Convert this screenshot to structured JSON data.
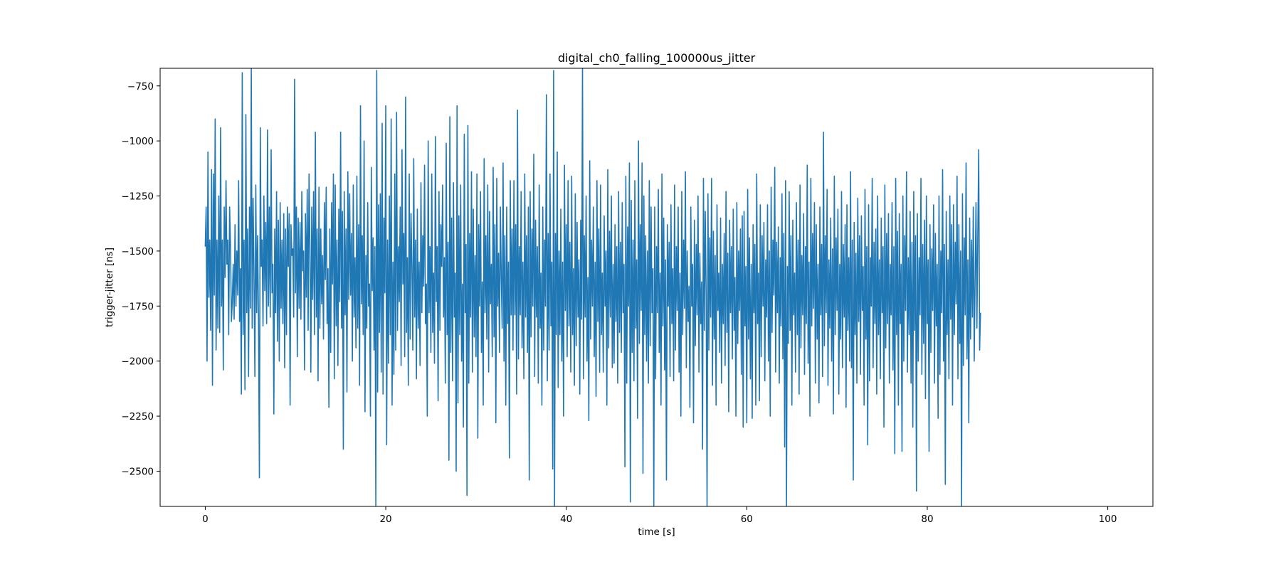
{
  "chart_data": {
    "type": "line",
    "title": "digital_ch0_falling_100000us_jitter",
    "xlabel": "time [s]",
    "ylabel": "trigger-jitter [ns]",
    "xlim": [
      -5,
      105
    ],
    "ylim": [
      -2660,
      -670
    ],
    "x_ticks": [
      0,
      20,
      40,
      60,
      80,
      100
    ],
    "x_tick_labels": [
      "0",
      "20",
      "40",
      "60",
      "80",
      "100"
    ],
    "y_ticks": [
      -2500,
      -2250,
      -2000,
      -1750,
      -1500,
      -1250,
      -1000,
      -750
    ],
    "y_tick_labels": [
      "−2500",
      "−2250",
      "−2000",
      "−1750",
      "−1500",
      "−1250",
      "−1000",
      "−750"
    ],
    "grid": false,
    "legend": "none",
    "series": [
      {
        "color": "#1f77b4",
        "x_start": 0,
        "x_step": 0.1,
        "values": [
          -1480,
          -1300,
          -2000,
          -1050,
          -1710,
          -1450,
          -1860,
          -1130,
          -2110,
          -1150,
          -1700,
          -900,
          -1950,
          -1450,
          -1850,
          -1250,
          -1870,
          -940,
          -1750,
          -1450,
          -2040,
          -1300,
          -1620,
          -1180,
          -1560,
          -1450,
          -1880,
          -1300,
          -1480,
          -1820,
          -1730,
          -1560,
          -1810,
          -1380,
          -1750,
          -1500,
          -1700,
          -1180,
          -1820,
          -1580,
          -2150,
          -690,
          -1880,
          -1450,
          -2130,
          -880,
          -1780,
          -1400,
          -2070,
          -1300,
          -1760,
          -670,
          -1850,
          -1260,
          -1600,
          -2070,
          -1200,
          -1780,
          -1430,
          -1800,
          -2530,
          -940,
          -1570,
          -1450,
          -1840,
          -1250,
          -1680,
          -1370,
          -1830,
          -950,
          -1750,
          -1300,
          -1800,
          -1040,
          -1690,
          -1560,
          -2240,
          -1400,
          -1780,
          -1230,
          -1910,
          -1360,
          -2000,
          -1280,
          -1760,
          -1450,
          -1830,
          -1330,
          -2030,
          -1400,
          -1880,
          -1300,
          -1570,
          -1330,
          -2200,
          -1380,
          -1520,
          -1490,
          -1800,
          -720,
          -1690,
          -1300,
          -1980,
          -1350,
          -1760,
          -1370,
          -1810,
          -1230,
          -1590,
          -1500,
          -2040,
          -1330,
          -1710,
          -1220,
          -1860,
          -1150,
          -1480,
          -2050,
          -1300,
          -1720,
          -1230,
          -1880,
          -960,
          -1800,
          -1400,
          -2090,
          -1210,
          -1850,
          -1400,
          -1740,
          -1520,
          -1900,
          -1280,
          -1630,
          -1210,
          -1830,
          -1580,
          -2210,
          -1400,
          -1960,
          -1280,
          -1650,
          -1150,
          -2080,
          -1200,
          -1840,
          -1450,
          -2020,
          -1310,
          -1730,
          -960,
          -1850,
          -1320,
          -2400,
          -1230,
          -1790,
          -1400,
          -2140,
          -1140,
          -1720,
          -1240,
          -1700,
          -1420,
          -2000,
          -1200,
          -1800,
          -1530,
          -1940,
          -1160,
          -1850,
          -1380,
          -2110,
          -840,
          -1740,
          -1430,
          -1880,
          -1000,
          -2230,
          -1520,
          -1850,
          -1280,
          -1750,
          -1650,
          -2250,
          -1120,
          -1680,
          -1440,
          -1950,
          -1480,
          -2660,
          -680,
          -2140,
          -1290,
          -1870,
          -1240,
          -2050,
          -920,
          -2150,
          -1350,
          -1690,
          -840,
          -2380,
          -1450,
          -2010,
          -1250,
          -1880,
          -900,
          -2200,
          -1550,
          -2060,
          -1150,
          -1950,
          -870,
          -1860,
          -1480,
          -1730,
          -1300,
          -2020,
          -1040,
          -1650,
          -1420,
          -1980,
          -800,
          -1870,
          -1530,
          -2110,
          -1150,
          -1900,
          -1330,
          -1570,
          -1950,
          -1080,
          -1800,
          -1450,
          -2080,
          -1310,
          -1850,
          -1550,
          -2020,
          -1190,
          -1780,
          -1430,
          -1660,
          -1110,
          -1830,
          -1650,
          -2250,
          -1000,
          -1780,
          -1480,
          -1960,
          -1150,
          -1870,
          -1600,
          -2010,
          -980,
          -1730,
          -1480,
          -2180,
          -1230,
          -1860,
          -1380,
          -1570,
          -1200,
          -1800,
          -1530,
          -2100,
          -1010,
          -1880,
          -1460,
          -2450,
          -890,
          -1960,
          -1350,
          -2090,
          -1190,
          -1800,
          -1600,
          -2500,
          -840,
          -2190,
          -1340,
          -1880,
          -1200,
          -2000,
          -1650,
          -2300,
          -970,
          -1780,
          -1470,
          -2610,
          -930,
          -2100,
          -1420,
          -1800,
          -1140,
          -2050,
          -1310,
          -1890,
          -1520,
          -1980,
          -1150,
          -2350,
          -1380,
          -1750,
          -1230,
          -1960,
          -1640,
          -2200,
          -1080,
          -1780,
          -1430,
          -1900,
          -1200,
          -2050,
          -1320,
          -1740,
          -1560,
          -1980,
          -1120,
          -1890,
          -1380,
          -2280,
          -1170,
          -1750,
          -1510,
          -1960,
          -1300,
          -1620,
          -1850,
          -1100,
          -2000,
          -1430,
          -2200,
          -1300,
          -1830,
          -1550,
          -2440,
          -1180,
          -1790,
          -1400,
          -1950,
          -1180,
          -1790,
          -1380,
          -2150,
          -860,
          -1990,
          -1480,
          -1790,
          -1230,
          -1940,
          -1550,
          -2080,
          -1150,
          -1800,
          -1430,
          -1960,
          -1300,
          -2540,
          -1230,
          -1890,
          -1400,
          -1750,
          -1060,
          -2070,
          -1360,
          -1800,
          -1480,
          -2100,
          -1200,
          -1850,
          -1600,
          -2200,
          -1300,
          -1950,
          -1450,
          -1750,
          -790,
          -2090,
          -1420,
          -1950,
          -1150,
          -1840,
          -1550,
          -2490,
          -680,
          -2670,
          -1420,
          -1880,
          -1050,
          -2120,
          -1500,
          -1880,
          -1310,
          -2000,
          -1550,
          -2250,
          -1110,
          -1770,
          -1380,
          -1980,
          -1180,
          -1840,
          -1460,
          -2050,
          -1160,
          -1880,
          -1580,
          -2110,
          -1240,
          -1930,
          -1370,
          -1800,
          -1540,
          -2150,
          -1360,
          -1810,
          -670,
          -2080,
          -1430,
          -1800,
          -1250,
          -2000,
          -1620,
          -2270,
          -1090,
          -1900,
          -1450,
          -1750,
          -1300,
          -1980,
          -1550,
          -2160,
          -1180,
          -1820,
          -1400,
          -2050,
          -1200,
          -1880,
          -1600,
          -2050,
          -1340,
          -1750,
          -1500,
          -2200,
          -1130,
          -1940,
          -1410,
          -1800,
          -1250,
          -2030,
          -1560,
          -2010,
          -1380,
          -1820,
          -1480,
          -2100,
          -1230,
          -1870,
          -1460,
          -1960,
          -1280,
          -1780,
          -1560,
          -2480,
          -1160,
          -2100,
          -1390,
          -1750,
          -1100,
          -2640,
          -1270,
          -1960,
          -1450,
          -2090,
          -1180,
          -1850,
          -1540,
          -2260,
          -1000,
          -1920,
          -1380,
          -1770,
          -1100,
          -2510,
          -1250,
          -1880,
          -1430,
          -2000,
          -1500,
          -2100,
          -1180,
          -1930,
          -1300,
          -1780,
          -1580,
          -2660,
          -1300,
          -2080,
          -1480,
          -1780,
          -1220,
          -1960,
          -1600,
          -2200,
          -1150,
          -1840,
          -1350,
          -2040,
          -1540,
          -2540,
          -1380,
          -1750,
          -1460,
          -2070,
          -1290,
          -1830,
          -1580,
          -2090,
          -1200,
          -1950,
          -1480,
          -1770,
          -1300,
          -2050,
          -1600,
          -2250,
          -1230,
          -1880,
          -1450,
          -1760,
          -1140,
          -2030,
          -1500,
          -1820,
          -1660,
          -2210,
          -1300,
          -1750,
          -1560,
          -2280,
          -1360,
          -1930,
          -1470,
          -1790,
          -1250,
          -2050,
          -1510,
          -1830,
          -1640,
          -2400,
          -1170,
          -1860,
          -1320,
          -1700,
          -2660,
          -1240,
          -1950,
          -1440,
          -1800,
          -1170,
          -2110,
          -1410,
          -1900,
          -1520,
          -2200,
          -1290,
          -1770,
          -1600,
          -1960,
          -1350,
          -2100,
          -1560,
          -1830,
          -1420,
          -2020,
          -1230,
          -1870,
          -1510,
          -2230,
          -1360,
          -1780,
          -1480,
          -1990,
          -1310,
          -1860,
          -1620,
          -2250,
          -1280,
          -1920,
          -1500,
          -1770,
          -1400,
          -2060,
          -1340,
          -2300,
          -1320,
          -1840,
          -1570,
          -2280,
          -1220,
          -1900,
          -1440,
          -2080,
          -1560,
          -2260,
          -1380,
          -1780,
          -1470,
          -2200,
          -1150,
          -1830,
          -1600,
          -2180,
          -1290,
          -1980,
          -1430,
          -1750,
          -1370,
          -2090,
          -1540,
          -1800,
          -1290,
          -2000,
          -1500,
          -2250,
          -1210,
          -1870,
          -1450,
          -1700,
          -1120,
          -2050,
          -1460,
          -1780,
          -1390,
          -2100,
          -1530,
          -1840,
          -1240,
          -1990,
          -1420,
          -2390,
          -1180,
          -2660,
          -1570,
          -1920,
          -1230,
          -1860,
          -1430,
          -2200,
          -1360,
          -1790,
          -1600,
          -2050,
          -1280,
          -1880,
          -1450,
          -2150,
          -1200,
          -1940,
          -1520,
          -1790,
          -1330,
          -2060,
          -1480,
          -1830,
          -1110,
          -2010,
          -1550,
          -2250,
          -1170,
          -1840,
          -1420,
          -1760,
          -1280,
          -2100,
          -1380,
          -1900,
          -1560,
          -2190,
          -1300,
          -1790,
          -1470,
          -2070,
          -960,
          -1930,
          -1430,
          -1780,
          -1220,
          -2110,
          -1540,
          -1850,
          -1350,
          -2000,
          -1490,
          -2240,
          -1160,
          -1880,
          -1440,
          -1770,
          -1310,
          -2150,
          -1560,
          -1900,
          -1230,
          -2030,
          -1470,
          -1800,
          -1380,
          -2210,
          -1290,
          -1860,
          -1530,
          -2000,
          -1140,
          -2030,
          -1450,
          -2540,
          -1370,
          -1880,
          -1510,
          -2100,
          -1260,
          -1820,
          -1430,
          -2060,
          -1340,
          -1770,
          -1570,
          -2200,
          -1220,
          -1900,
          -1480,
          -2380,
          -1290,
          -2090,
          -1530,
          -1750,
          -1170,
          -2030,
          -1460,
          -1830,
          -1400,
          -2150,
          -1250,
          -1880,
          -1540,
          -2080,
          -1350,
          -1780,
          -1480,
          -2300,
          -1200,
          -1940,
          -1420,
          -1830,
          -1330,
          -2100,
          -1560,
          -1790,
          -1280,
          -2040,
          -1480,
          -2420,
          -1170,
          -1880,
          -1410,
          -2200,
          -1330,
          -1830,
          -1560,
          -2410,
          -1250,
          -2000,
          -1430,
          -1770,
          -1140,
          -2050,
          -1530,
          -1880,
          -1320,
          -2100,
          -1460,
          -2300,
          -1230,
          -1860,
          -1430,
          -2590,
          -1330,
          -2000,
          -1530,
          -1790,
          -1170,
          -2060,
          -1470,
          -1920,
          -1360,
          -2170,
          -1250,
          -1830,
          -1540,
          -2410,
          -1380,
          -1960,
          -1490,
          -1770,
          -1290,
          -2100,
          -1420,
          -1840,
          -1560,
          -2260,
          -1250,
          -2060,
          -1500,
          -1780,
          -1130,
          -2000,
          -1470,
          -2560,
          -1320,
          -1880,
          -1540,
          -2080,
          -1250,
          -1810,
          -1380,
          -2200,
          -1290,
          -1880,
          -1460,
          -1740,
          -1160,
          -2080,
          -1380,
          -1920,
          -1500,
          -2670,
          -1240,
          -2020,
          -1440,
          -1790,
          -1100,
          -1990,
          -1540,
          -2280,
          -1350,
          -1900,
          -1450,
          -1800,
          -1300,
          -2000,
          -1620,
          -1280,
          -1850,
          -1430,
          -1040,
          -1950,
          -1780
        ]
      }
    ]
  }
}
